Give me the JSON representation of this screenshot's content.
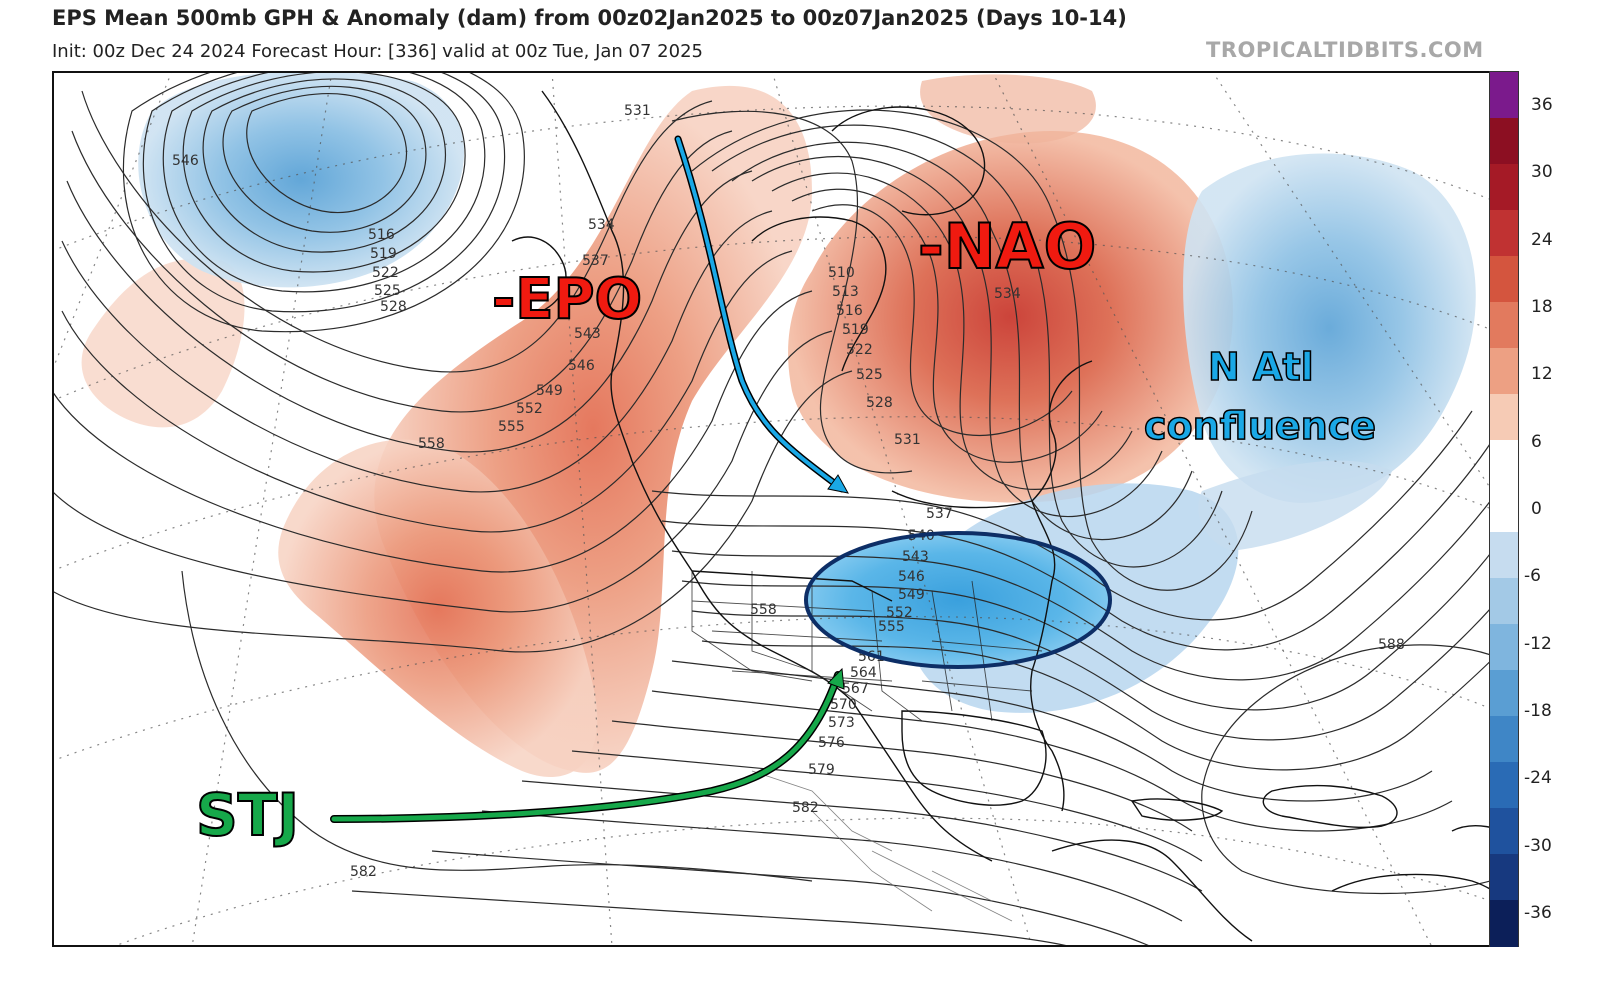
{
  "header": {
    "title": "EPS Mean 500mb GPH & Anomaly (dam) from 00z02Jan2025 to 00z07Jan2025 (Days 10-14)",
    "subtitle": "Init: 00z Dec 24 2024   Forecast Hour: [336]   valid at 00z Tue, Jan 07 2025",
    "watermark": "TROPICALTIDBITS.COM"
  },
  "colorbar": {
    "ticks": [
      "36",
      "30",
      "24",
      "18",
      "12",
      "6",
      "0",
      "-6",
      "-12",
      "-18",
      "-24",
      "-30",
      "-36"
    ],
    "colors": [
      "#7b1a8c",
      "#8c0f22",
      "#a51a26",
      "#c03232",
      "#d4553e",
      "#e27a5e",
      "#eda083",
      "#f6cbb5",
      "#ffffff",
      "#ffffff",
      "#c6dcef",
      "#a3c9e6",
      "#7fb5de",
      "#5a9ed3",
      "#3f86c6",
      "#2a6bb5",
      "#1f529e",
      "#17397f",
      "#0c1f59"
    ]
  },
  "annotations": {
    "epo": "-EPO",
    "nao": "-NAO",
    "natl_line1": "N Atl",
    "natl_line2": "confluence",
    "stj": "STJ"
  },
  "contour_labels": [
    "531",
    "546",
    "516",
    "519",
    "522",
    "525",
    "528",
    "534",
    "537",
    "543",
    "546",
    "549",
    "552",
    "555",
    "558",
    "510",
    "513",
    "516",
    "519",
    "522",
    "525",
    "528",
    "531",
    "534",
    "537",
    "540",
    "543",
    "546",
    "549",
    "552",
    "555",
    "558",
    "561",
    "564",
    "567",
    "570",
    "573",
    "576",
    "579",
    "582",
    "582",
    "588"
  ],
  "colors": {
    "warm_anomaly": "#e88a6a",
    "cold_anomaly": "#5aaee0",
    "jet_arrow": "#16a84a",
    "flow_arrow": "#1aa8e6",
    "ellipse_stroke": "#0d2e66"
  }
}
